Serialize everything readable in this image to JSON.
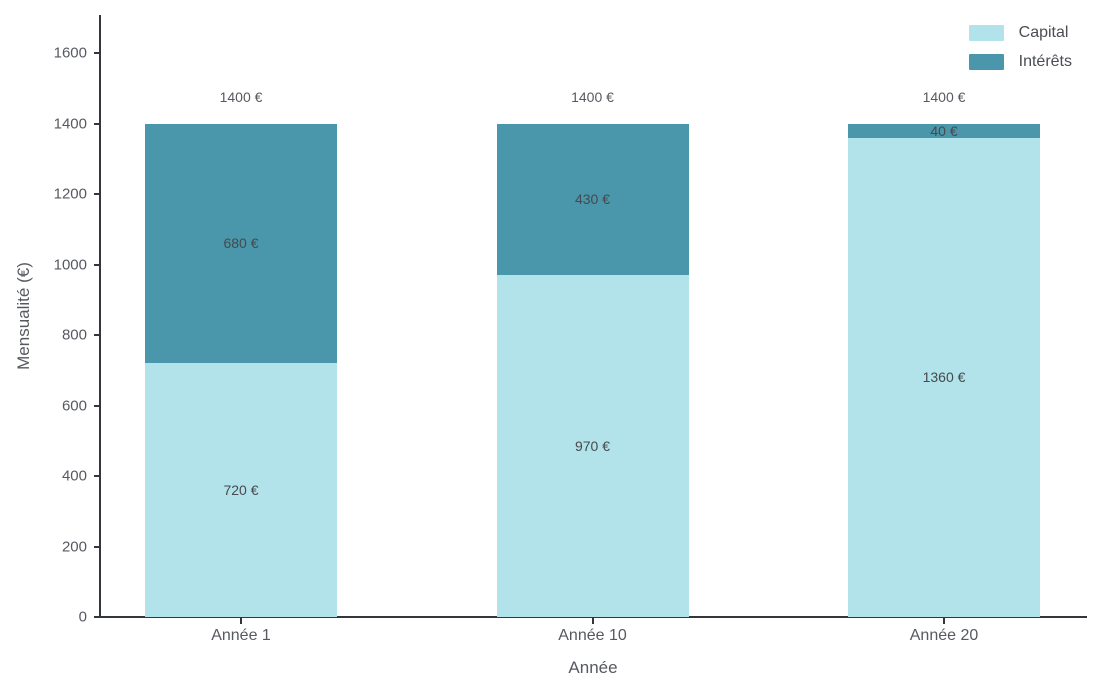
{
  "chart_data": {
    "type": "bar",
    "stacked": true,
    "categories": [
      "Année 1",
      "Année 10",
      "Année 20"
    ],
    "series": [
      {
        "name": "Capital",
        "color": "#b3e3ea",
        "values": [
          720,
          970,
          1360
        ],
        "value_labels": [
          "720 €",
          "970 €",
          "1360 €"
        ]
      },
      {
        "name": "Intérêts",
        "color": "#4a96ab",
        "values": [
          680,
          430,
          40
        ],
        "value_labels": [
          "680 €",
          "430 €",
          "40 €"
        ]
      }
    ],
    "totals": [
      1400,
      1400,
      1400
    ],
    "total_labels": [
      "1400 €",
      "1400 €",
      "1400 €"
    ],
    "title": "",
    "xlabel": "Année",
    "ylabel": "Mensualité (€)",
    "ylim": [
      0,
      1700
    ],
    "yticks": [
      0,
      200,
      400,
      600,
      800,
      1000,
      1200,
      1400,
      1600
    ],
    "grid": false,
    "legend_position": "top-right",
    "background_color": "#ffffff",
    "axis_color": "#33363b",
    "text_color": "#565a60"
  }
}
